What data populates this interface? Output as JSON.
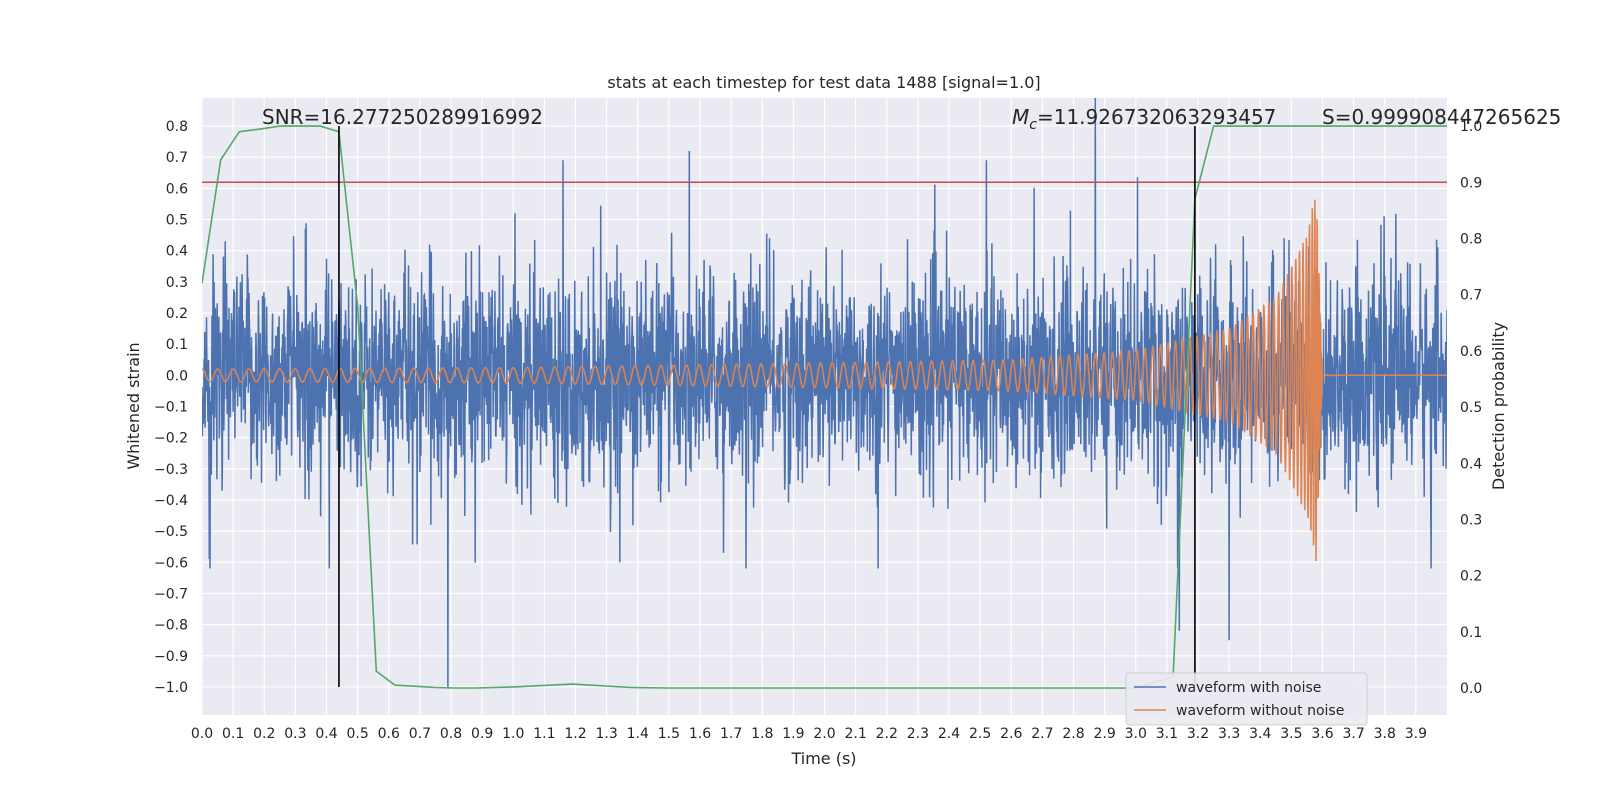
{
  "chart_data": {
    "type": "line",
    "title": "stats at each timestep for test data 1488 [signal=1.0]",
    "xlabel": "Time (s)",
    "ylabel": "Whitened strain",
    "y2label": "Detection probability",
    "xlim": [
      0.0,
      4.0
    ],
    "ylim": [
      -1.09,
      0.89
    ],
    "y2lim": [
      -0.048,
      1.05
    ],
    "xticks": [
      "0.0",
      "0.1",
      "0.2",
      "0.3",
      "0.4",
      "0.5",
      "0.6",
      "0.7",
      "0.8",
      "0.9",
      "1.0",
      "1.1",
      "1.2",
      "1.3",
      "1.4",
      "1.5",
      "1.6",
      "1.7",
      "1.8",
      "1.9",
      "2.0",
      "2.1",
      "2.2",
      "2.3",
      "2.4",
      "2.5",
      "2.6",
      "2.7",
      "2.8",
      "2.9",
      "3.0",
      "3.1",
      "3.2",
      "3.3",
      "3.4",
      "3.5",
      "3.6",
      "3.7",
      "3.8",
      "3.9"
    ],
    "yticks": [
      "0.8",
      "0.7",
      "0.6",
      "0.5",
      "0.4",
      "0.3",
      "0.2",
      "0.1",
      "0.0",
      "−0.1",
      "−0.2",
      "−0.3",
      "−0.4",
      "−0.5",
      "−0.6",
      "−0.7",
      "−0.8",
      "−0.9",
      "−1.0"
    ],
    "y2ticks": [
      "1.0",
      "0.9",
      "0.8",
      "0.7",
      "0.6",
      "0.5",
      "0.4",
      "0.3",
      "0.2",
      "0.1",
      "0.0"
    ],
    "grid": true,
    "legend_position": "lower-right",
    "colors": {
      "noise": "#4c72b0",
      "clean": "#dd8452",
      "probability": "#55a868",
      "threshold": "#c44e52",
      "markers": "#000000",
      "background": "#eaeaf2",
      "grid": "#ffffff"
    },
    "series": [
      {
        "name": "waveform with noise",
        "axis": "left",
        "note_shape": "dense noisy whitened strain trace, amplitude roughly ±0.4 with spikes to ±0.7",
        "notable_points": [
          [
            0.79,
            -1.0
          ],
          [
            2.87,
            0.89
          ],
          [
            3.14,
            -0.82
          ],
          [
            3.3,
            -0.85
          ],
          [
            1.16,
            0.69
          ],
          [
            2.52,
            0.69
          ]
        ]
      },
      {
        "name": "waveform without noise",
        "axis": "left",
        "note_shape": "chirp: amplitude 0.02 at t=0 growing to peak ±0.6 near t=3.58 s, then ringdown to ~0",
        "amplitude_profile": [
          [
            0.0,
            0.02
          ],
          [
            1.0,
            0.025
          ],
          [
            2.0,
            0.04
          ],
          [
            2.6,
            0.05
          ],
          [
            3.0,
            0.08
          ],
          [
            3.3,
            0.15
          ],
          [
            3.45,
            0.25
          ],
          [
            3.55,
            0.45
          ],
          [
            3.58,
            0.6
          ],
          [
            3.6,
            0.01
          ]
        ]
      },
      {
        "name": "",
        "axis": "right",
        "x": [
          0.0,
          0.06,
          0.12,
          0.19,
          0.25,
          0.31,
          0.38,
          0.44,
          0.5,
          0.56,
          0.62,
          0.69,
          0.75,
          0.81,
          0.88,
          1.0,
          1.19,
          1.38,
          1.5,
          2.0,
          2.5,
          2.75,
          3.0,
          3.12,
          3.19,
          3.25,
          3.31,
          3.5,
          3.75,
          4.0
        ],
        "y": [
          0.72,
          0.94,
          0.99,
          0.995,
          1.0,
          1.0,
          1.0,
          0.99,
          0.68,
          0.03,
          0.005,
          0.003,
          0.001,
          0.0,
          0.0,
          0.002,
          0.007,
          0.001,
          0.0,
          0.0,
          0.0,
          0.0,
          0.0,
          0.02,
          0.87,
          1.0,
          1.0,
          1.0,
          1.0,
          1.0
        ]
      }
    ],
    "threshold": {
      "axis": "right",
      "y": 0.9
    },
    "vlines": [
      0.44,
      3.19
    ],
    "annotations": [
      {
        "text": "SNR=16.277250289916992",
        "x": 0.19,
        "y": 0.82
      },
      {
        "text_prefix": "M",
        "text_sub": "c",
        "text_rest": "=11.926732063293457",
        "x": 2.6,
        "y": 0.82
      },
      {
        "text": "S=0.999908447265625",
        "x": 3.6,
        "y": 0.82
      }
    ]
  }
}
